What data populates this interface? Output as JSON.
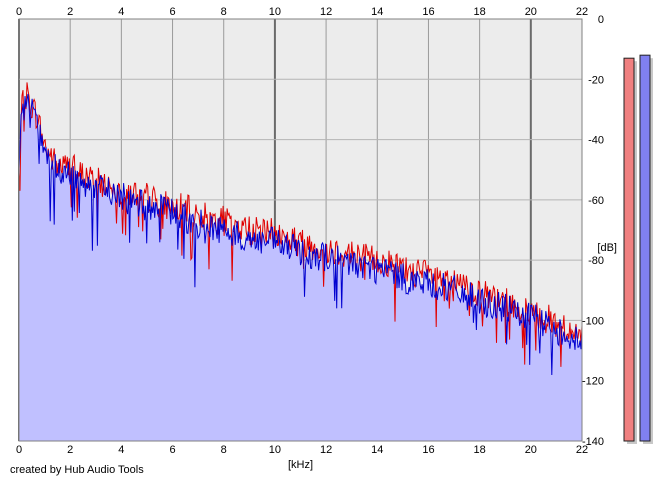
{
  "chart_data": {
    "type": "area",
    "title": "",
    "xlabel": "[kHz]",
    "ylabel": "[dB]",
    "xlim": [
      0,
      22
    ],
    "ylim": [
      -140,
      0
    ],
    "x_ticks": [
      "0",
      "2",
      "4",
      "6",
      "8",
      "10",
      "12",
      "14",
      "16",
      "18",
      "20",
      "22"
    ],
    "y_ticks": [
      "0",
      "-20",
      "-40",
      "-60",
      "-80",
      "-100",
      "-120",
      "-140"
    ],
    "grid": true,
    "background_color": "#ececec",
    "series": [
      {
        "color": "#e00000",
        "x": [
          0,
          0.1,
          0.3,
          0.5,
          0.7,
          1.0,
          1.5,
          2.0,
          2.5,
          3.0,
          3.5,
          4.0,
          4.5,
          5.0,
          5.5,
          6.0,
          6.5,
          7.0,
          7.5,
          8.0,
          8.5,
          9.0,
          9.5,
          10.0,
          10.5,
          11.0,
          11.5,
          12.0,
          12.5,
          13.0,
          13.5,
          14.0,
          14.5,
          15.0,
          15.5,
          16.0,
          16.5,
          17.0,
          17.5,
          18.0,
          18.5,
          19.0,
          19.5,
          20.0,
          20.5,
          21.0,
          21.5,
          22.0
        ],
        "values": [
          -52,
          -30,
          -25,
          -29,
          -32,
          -42,
          -49,
          -49,
          -52,
          -54,
          -55,
          -57,
          -58,
          -59,
          -61,
          -62,
          -63,
          -65,
          -66,
          -67,
          -69,
          -70,
          -71,
          -71,
          -73,
          -74,
          -75,
          -76,
          -77,
          -78,
          -79,
          -80,
          -81,
          -83,
          -84,
          -85,
          -86,
          -88,
          -89,
          -91,
          -93,
          -94,
          -96,
          -97,
          -99,
          -101,
          -103,
          -106
        ]
      },
      {
        "color": "#0000d0",
        "x": [
          0,
          0.1,
          0.3,
          0.5,
          0.7,
          1.0,
          1.5,
          2.0,
          2.5,
          3.0,
          3.5,
          4.0,
          4.5,
          5.0,
          5.5,
          6.0,
          6.5,
          7.0,
          7.5,
          8.0,
          8.5,
          9.0,
          9.5,
          10.0,
          10.5,
          11.0,
          11.5,
          12.0,
          12.5,
          13.0,
          13.5,
          14.0,
          14.5,
          15.0,
          15.5,
          16.0,
          16.5,
          17.0,
          17.5,
          18.0,
          18.5,
          19.0,
          19.5,
          20.0,
          20.5,
          21.0,
          21.5,
          22.0
        ],
        "values": [
          -54,
          -32,
          -27,
          -31,
          -34,
          -44,
          -51,
          -52,
          -54,
          -56,
          -57,
          -59,
          -61,
          -62,
          -63,
          -64,
          -66,
          -68,
          -69,
          -70,
          -72,
          -73,
          -74,
          -74,
          -76,
          -77,
          -78,
          -79,
          -80,
          -81,
          -82,
          -83,
          -84,
          -86,
          -87,
          -88,
          -89,
          -90,
          -92,
          -93,
          -95,
          -96,
          -98,
          -99,
          -101,
          -103,
          -105,
          -108
        ]
      }
    ],
    "fill_color": "#c0c0ff",
    "level_meters": [
      {
        "color": "#f08080",
        "level": -13
      },
      {
        "color": "#8080f0",
        "level": -12
      }
    ]
  },
  "credit": "created by Hub Audio Tools"
}
